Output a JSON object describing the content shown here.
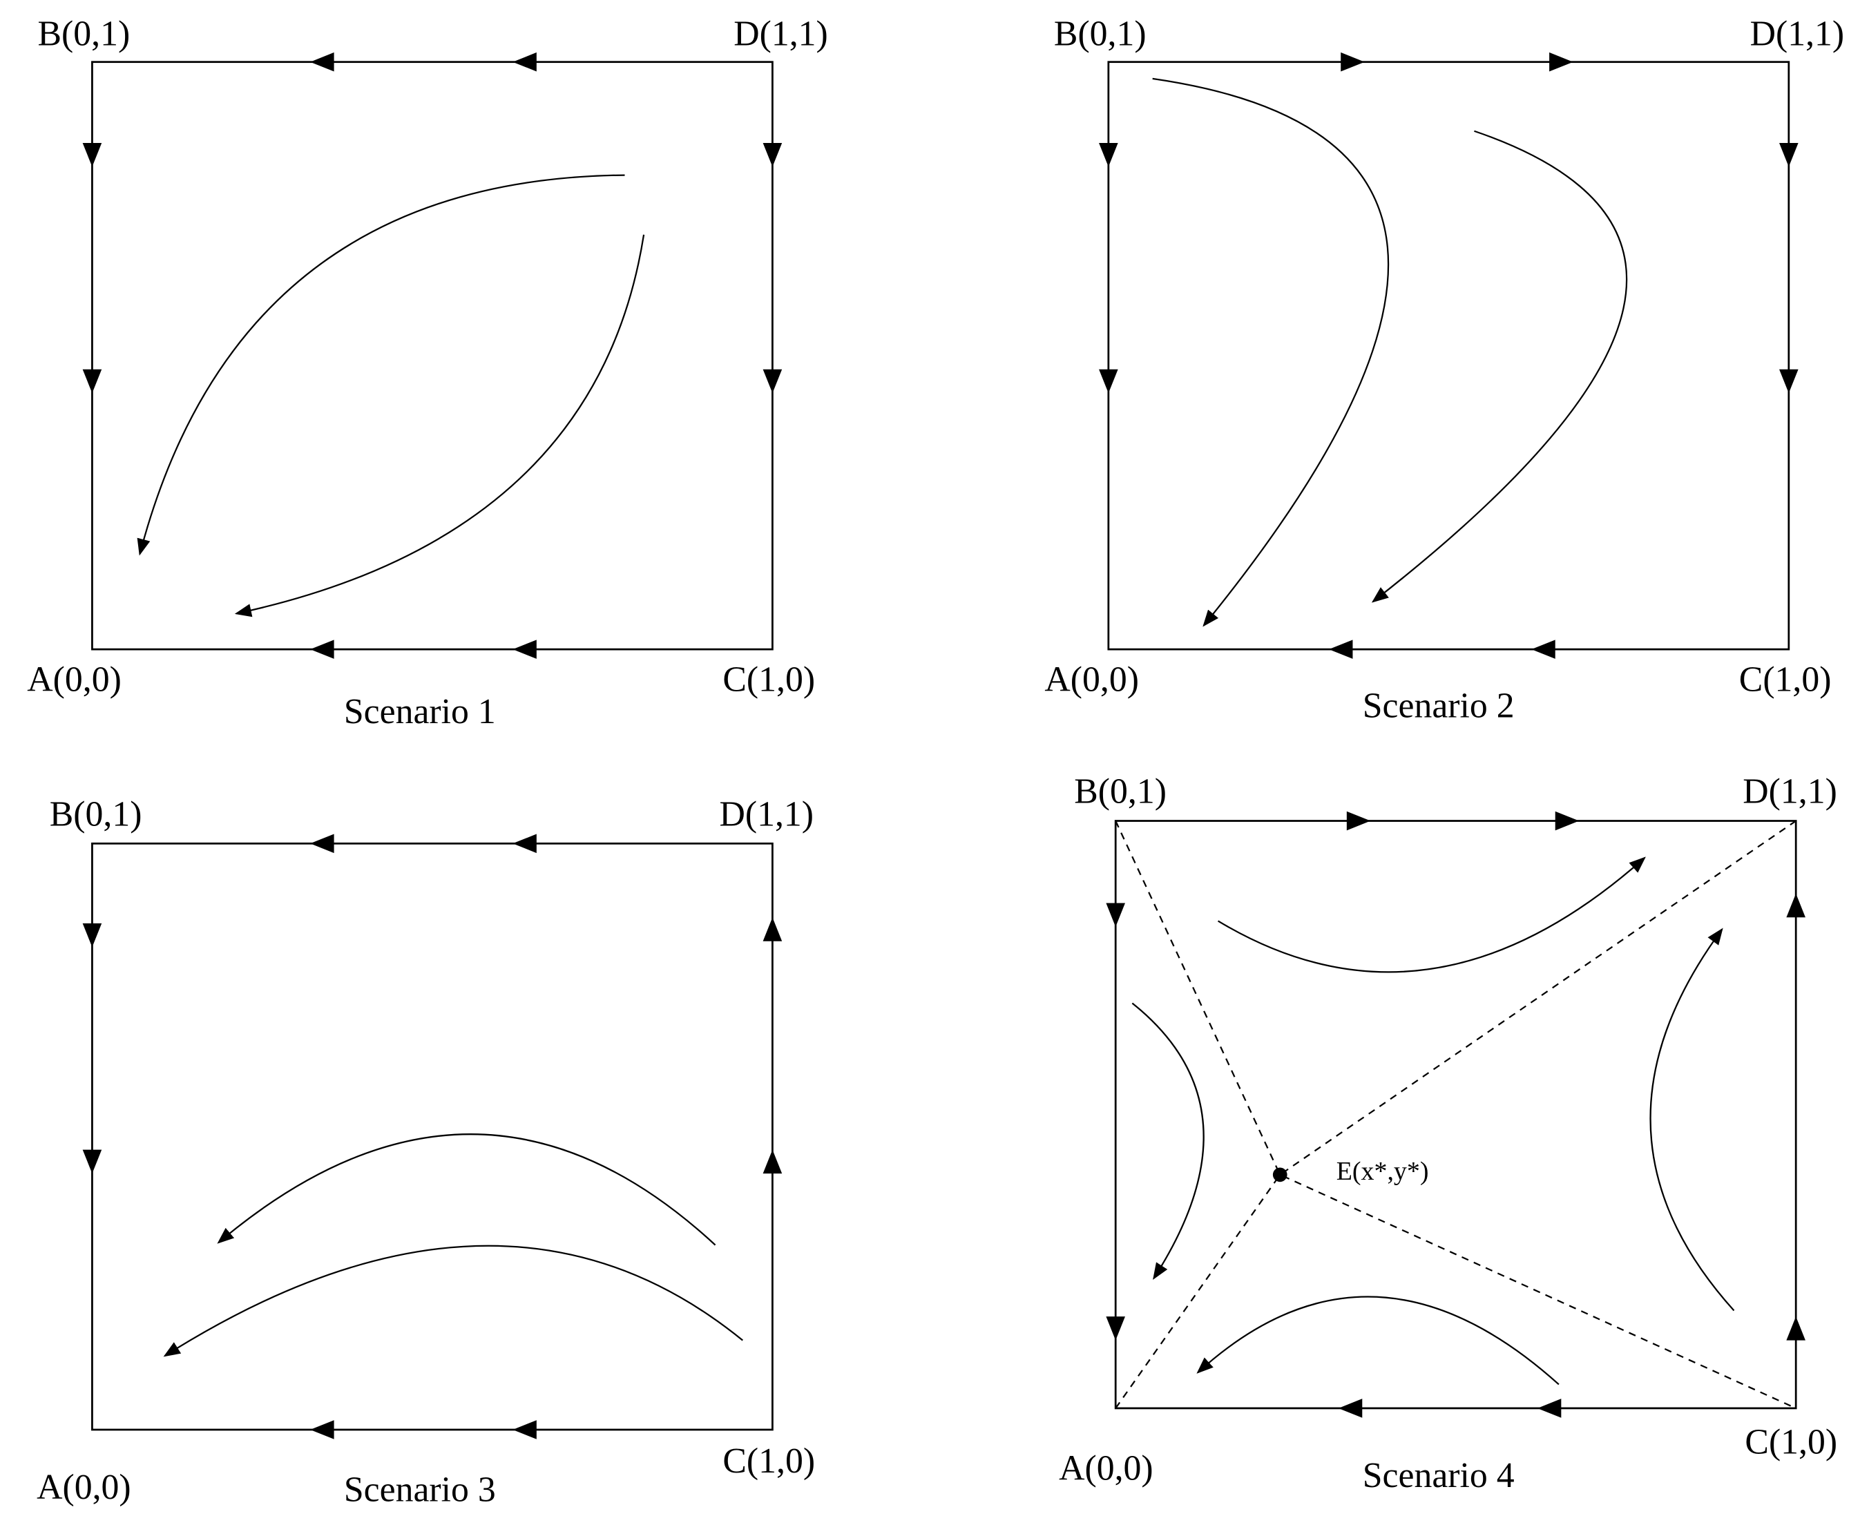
{
  "panels": [
    {
      "caption": "Scenario 1",
      "labels": {
        "A": "A(0,0)",
        "B": "B(0,1)",
        "C": "C(1,0)",
        "D": "D(1,1)"
      }
    },
    {
      "caption": "Scenario 2",
      "labels": {
        "A": "A(0,0)",
        "B": "B(0,1)",
        "C": "C(1,0)",
        "D": "D(1,1)"
      }
    },
    {
      "caption": "Scenario 3",
      "labels": {
        "A": "A(0,0)",
        "B": "B(0,1)",
        "C": "C(1,0)",
        "D": "D(1,1)"
      }
    },
    {
      "caption": "Scenario 4",
      "labels": {
        "A": "A(0,0)",
        "B": "B(0,1)",
        "C": "C(1,0)",
        "D": "D(1,1)"
      }
    }
  ],
  "equilibrium": "E(x*,y*)"
}
